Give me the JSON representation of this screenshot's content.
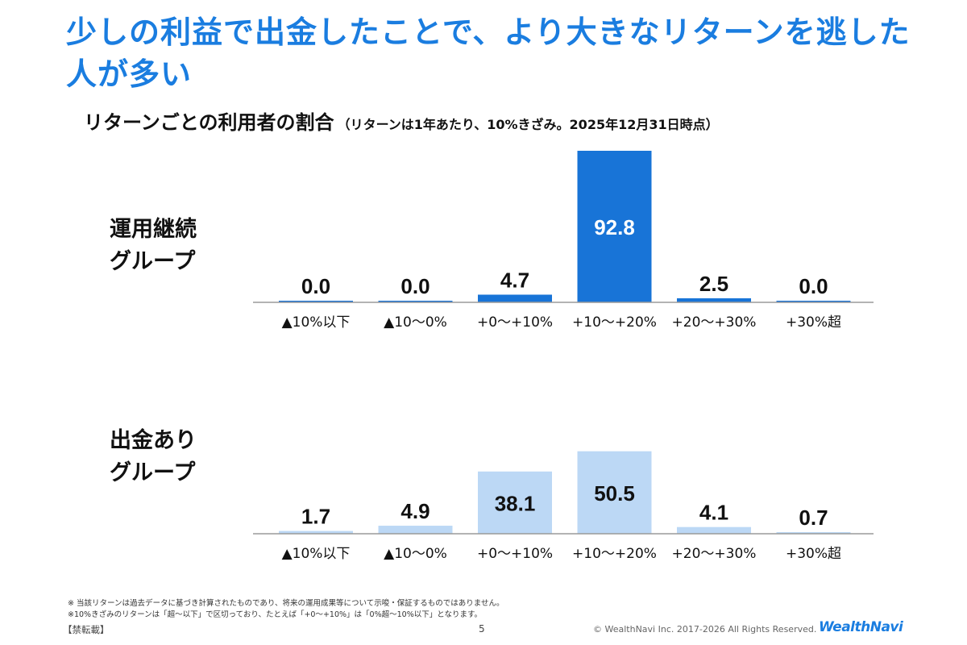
{
  "title": "少しの利益で出金したことで、より大きなリターンを逃した人が多い",
  "chart_title": "リターンごとの利用者の割合",
  "chart_subtitle": "（リターンは1年あたり、10%きざみ。2025年12月31日時点）",
  "colors": {
    "accent": "#1a7de0",
    "group1_bar": "#1874d7",
    "group2_bar": "#bcd8f5",
    "axis": "#9a9a9a"
  },
  "groups": [
    {
      "label_line1": "運用継続",
      "label_line2": "グループ"
    },
    {
      "label_line1": "出金あり",
      "label_line2": "グループ"
    }
  ],
  "chart_data": [
    {
      "type": "bar",
      "title": "運用継続グループ",
      "categories": [
        "▲10%以下",
        "▲10～0%",
        "+0～+10%",
        "+10～+20%",
        "+20～+30%",
        "+30%超"
      ],
      "values": [
        0.0,
        0.0,
        4.7,
        92.8,
        2.5,
        0.0
      ],
      "value_labels": [
        "0.0",
        "0.0",
        "4.7",
        "92.8",
        "2.5",
        "0.0"
      ],
      "ylim": [
        0,
        100
      ],
      "xlabel": "",
      "ylabel": ""
    },
    {
      "type": "bar",
      "title": "出金ありグループ",
      "categories": [
        "▲10%以下",
        "▲10～0%",
        "+0～+10%",
        "+10～+20%",
        "+20～+30%",
        "+30%超"
      ],
      "values": [
        1.7,
        4.9,
        38.1,
        50.5,
        4.1,
        0.7
      ],
      "value_labels": [
        "1.7",
        "4.9",
        "38.1",
        "50.5",
        "4.1",
        "0.7"
      ],
      "ylim": [
        0,
        100
      ],
      "xlabel": "",
      "ylabel": ""
    }
  ],
  "footnotes": [
    "※ 当該リターンは過去データに基づき計算されたものであり、将来の運用成果等について示唆・保証するものではありません。",
    "※10%きざみのリターンは「超～以下」で区切っており、たとえば「+0～+10%」は「0%超～10%以下」となります。"
  ],
  "footer": {
    "confidential": "【禁転載】",
    "page_number": "5",
    "copyright": "© WealthNavi Inc. 2017-2026 All Rights Reserved.",
    "brand": "WealthNavi"
  }
}
